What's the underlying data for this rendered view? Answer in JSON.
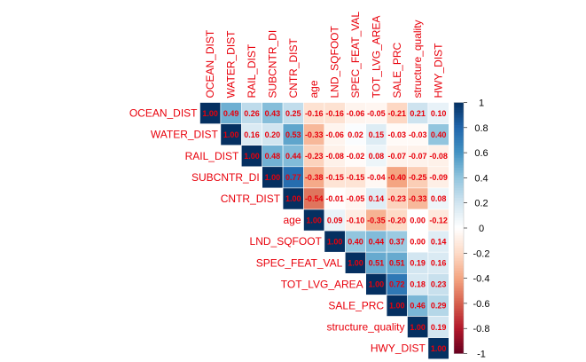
{
  "chart_data": {
    "type": "heatmap",
    "variables": [
      "OCEAN_DIST",
      "WATER_DIST",
      "RAIL_DIST",
      "SUBCNTR_DI",
      "CNTR_DIST",
      "age",
      "LND_SQFOOT",
      "SPEC_FEAT_VAL",
      "TOT_LVG_AREA",
      "SALE_PRC",
      "structure_quality",
      "HWY_DIST"
    ],
    "matrix_shape": "upper-triangle",
    "values": [
      [
        "1.00",
        "0.49",
        "0.26",
        "0.43",
        "0.25",
        "-0.16",
        "-0.16",
        "-0.06",
        "-0.05",
        "-0.21",
        "0.21",
        "0.10"
      ],
      [
        null,
        "1.00",
        "0.16",
        "0.20",
        "0.53",
        "-0.33",
        "-0.06",
        "0.02",
        "0.15",
        "-0.03",
        "-0.03",
        "0.40"
      ],
      [
        null,
        null,
        "1.00",
        "0.48",
        "0.44",
        "-0.23",
        "-0.08",
        "-0.02",
        "0.08",
        "-0.07",
        "-0.07",
        "-0.08"
      ],
      [
        null,
        null,
        null,
        "1.00",
        "0.77",
        "-0.38",
        "-0.15",
        "-0.15",
        "-0.04",
        "-0.40",
        "-0.25",
        "-0.09"
      ],
      [
        null,
        null,
        null,
        null,
        "1.00",
        "-0.54",
        "-0.01",
        "-0.05",
        "0.14",
        "-0.23",
        "-0.33",
        "0.08"
      ],
      [
        null,
        null,
        null,
        null,
        null,
        "1.00",
        "0.09",
        "-0.10",
        "-0.35",
        "-0.20",
        "0.00",
        "-0.12"
      ],
      [
        null,
        null,
        null,
        null,
        null,
        null,
        "1.00",
        "0.40",
        "0.44",
        "0.37",
        "0.00",
        "0.14"
      ],
      [
        null,
        null,
        null,
        null,
        null,
        null,
        null,
        "1.00",
        "0.51",
        "0.51",
        "0.19",
        "0.16"
      ],
      [
        null,
        null,
        null,
        null,
        null,
        null,
        null,
        null,
        "1.00",
        "0.72",
        "0.18",
        "0.23"
      ],
      [
        null,
        null,
        null,
        null,
        null,
        null,
        null,
        null,
        null,
        "1.00",
        "0.46",
        "0.29"
      ],
      [
        null,
        null,
        null,
        null,
        null,
        null,
        null,
        null,
        null,
        null,
        "1.00",
        "0.19"
      ],
      [
        null,
        null,
        null,
        null,
        null,
        null,
        null,
        null,
        null,
        null,
        null,
        "1.00"
      ]
    ],
    "color_scale": {
      "range": [
        -1,
        1
      ],
      "negative": "#67001f",
      "mid": "#ffffff",
      "positive": "#053061",
      "ticks": [
        "1",
        "0.8",
        "0.6",
        "0.4",
        "0.2",
        "0",
        "-0.2",
        "-0.4",
        "-0.6",
        "-0.8",
        "-1"
      ]
    },
    "label_color": "#e8000b",
    "value_text_color": "#e8000b"
  }
}
